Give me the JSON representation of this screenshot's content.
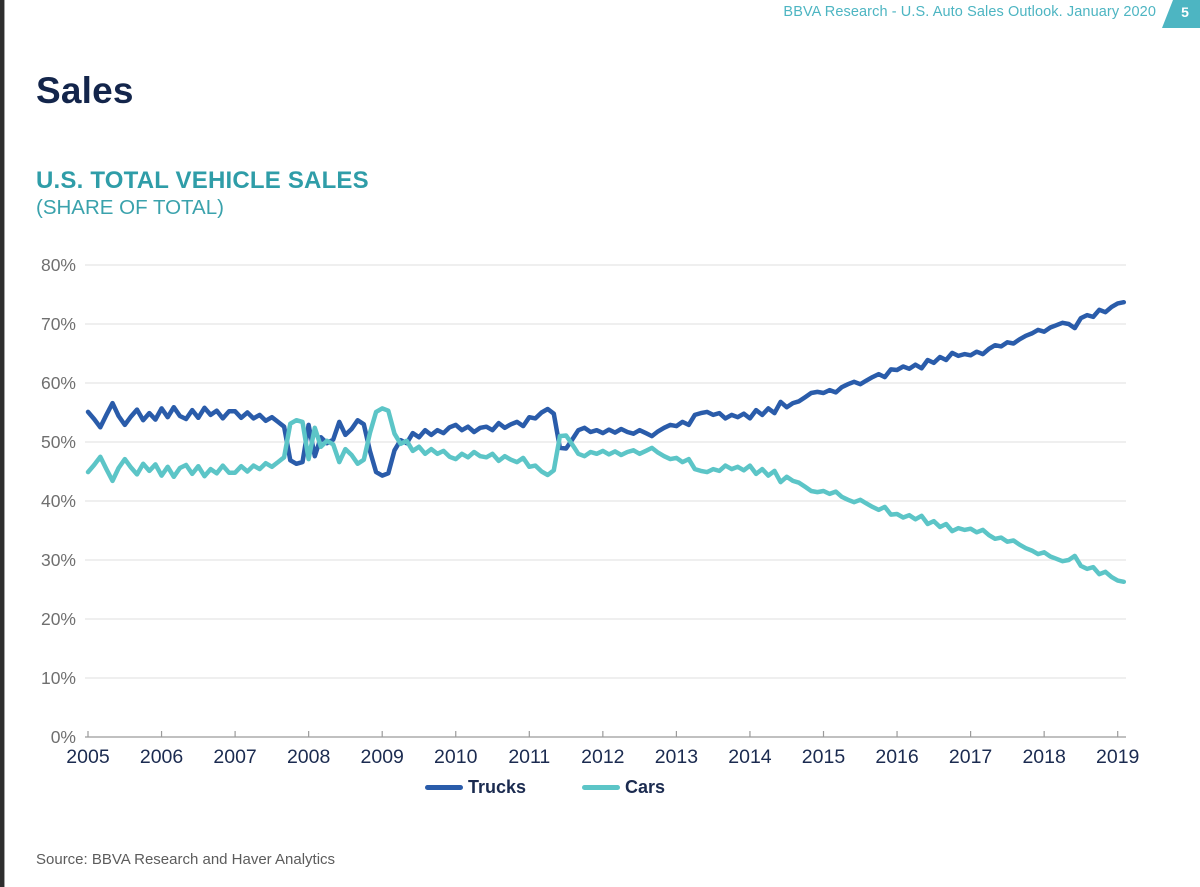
{
  "page": {
    "header": "BBVA Research - U.S. Auto Sales Outlook. January 2020",
    "page_number": "5",
    "title": "Sales",
    "source": "Source: BBVA Research and Haver Analytics"
  },
  "chart": {
    "title": "U.S. TOTAL VEHICLE SALES",
    "subtitle": "(SHARE OF TOTAL)"
  },
  "colors": {
    "trucks_line": "#2a5caa",
    "cars_line": "#5cc5c7",
    "accent_teal": "#4db5c2",
    "title_teal": "#2f9da8",
    "navy_text": "#13254b",
    "axis_gray": "#9b9b9b",
    "gridline_gray": "#dfdfdf"
  },
  "chart_data": {
    "type": "line",
    "title": "U.S. TOTAL VEHICLE SALES (SHARE OF TOTAL)",
    "x_unit": "monthly",
    "x_start": "2005-01",
    "x_end": "2019-02",
    "x_tick_labels": [
      "2005",
      "2006",
      "2007",
      "2008",
      "2009",
      "2010",
      "2011",
      "2012",
      "2013",
      "2014",
      "2015",
      "2016",
      "2017",
      "2018",
      "2019"
    ],
    "ylim": [
      0,
      80
    ],
    "ytick_step": 10,
    "ytick_suffix": "%",
    "grid": "horizontal",
    "legend_position": "bottom",
    "series": [
      {
        "name": "Trucks",
        "color": "#2a5caa",
        "values": [
          55.1,
          53.9,
          52.5,
          54.6,
          56.6,
          54.4,
          52.9,
          54.3,
          55.5,
          53.7,
          54.9,
          53.8,
          55.7,
          54.2,
          55.9,
          54.4,
          53.9,
          55.4,
          54.1,
          55.8,
          54.6,
          55.3,
          54.0,
          55.2,
          55.2,
          54.1,
          55.0,
          54.0,
          54.6,
          53.6,
          54.2,
          53.4,
          52.6,
          46.9,
          46.3,
          46.6,
          52.9,
          47.6,
          50.8,
          49.8,
          50.4,
          53.4,
          51.2,
          52.2,
          53.7,
          53.0,
          48.5,
          44.9,
          44.3,
          44.7,
          48.6,
          50.3,
          49.8,
          51.5,
          50.8,
          52.0,
          51.2,
          52.0,
          51.5,
          52.5,
          52.9,
          52.0,
          52.6,
          51.7,
          52.4,
          52.6,
          52.0,
          53.2,
          52.4,
          53.0,
          53.4,
          52.7,
          54.2,
          54.0,
          55.0,
          55.6,
          54.8,
          49.0,
          48.9,
          50.4,
          52.0,
          52.4,
          51.7,
          52.0,
          51.5,
          52.1,
          51.6,
          52.2,
          51.7,
          51.4,
          52.0,
          51.5,
          51.0,
          51.8,
          52.4,
          52.9,
          52.7,
          53.4,
          52.9,
          54.6,
          54.9,
          55.1,
          54.6,
          54.9,
          54.0,
          54.6,
          54.2,
          54.8,
          54.0,
          55.4,
          54.6,
          55.7,
          54.9,
          56.8,
          55.9,
          56.6,
          56.9,
          57.6,
          58.3,
          58.5,
          58.3,
          58.8,
          58.4,
          59.3,
          59.8,
          60.2,
          59.8,
          60.4,
          61.0,
          61.5,
          61.0,
          62.3,
          62.2,
          62.8,
          62.4,
          63.1,
          62.5,
          63.9,
          63.4,
          64.4,
          63.9,
          65.1,
          64.6,
          64.9,
          64.7,
          65.3,
          64.9,
          65.8,
          66.4,
          66.2,
          66.9,
          66.7,
          67.4,
          68.0,
          68.4,
          69.0,
          68.7,
          69.4,
          69.8,
          70.2,
          70.0,
          69.3,
          71.0,
          71.5,
          71.2,
          72.4,
          72.0,
          72.9,
          73.5,
          73.7
        ]
      },
      {
        "name": "Cars",
        "color": "#5cc5c7",
        "values": [
          44.9,
          46.1,
          47.5,
          45.4,
          43.4,
          45.6,
          47.1,
          45.7,
          44.5,
          46.3,
          45.1,
          46.2,
          44.3,
          45.8,
          44.1,
          45.6,
          46.1,
          44.6,
          45.9,
          44.2,
          45.4,
          44.7,
          46.0,
          44.8,
          44.8,
          45.9,
          45.0,
          46.0,
          45.4,
          46.4,
          45.8,
          46.6,
          47.4,
          53.1,
          53.7,
          53.4,
          47.1,
          52.4,
          49.2,
          50.2,
          49.6,
          46.6,
          48.8,
          47.8,
          46.3,
          47.0,
          51.5,
          55.1,
          55.7,
          55.3,
          51.4,
          49.7,
          50.2,
          48.5,
          49.2,
          48.0,
          48.8,
          48.0,
          48.5,
          47.5,
          47.1,
          48.0,
          47.4,
          48.3,
          47.6,
          47.4,
          48.0,
          46.8,
          47.6,
          47.0,
          46.6,
          47.3,
          45.8,
          46.0,
          45.0,
          44.4,
          45.2,
          51.0,
          51.1,
          49.6,
          48.0,
          47.6,
          48.3,
          48.0,
          48.5,
          47.9,
          48.4,
          47.8,
          48.3,
          48.6,
          48.0,
          48.5,
          49.0,
          48.2,
          47.6,
          47.1,
          47.3,
          46.6,
          47.1,
          45.4,
          45.1,
          44.9,
          45.4,
          45.1,
          46.0,
          45.4,
          45.8,
          45.2,
          46.0,
          44.6,
          45.4,
          44.3,
          45.1,
          43.2,
          44.1,
          43.4,
          43.1,
          42.4,
          41.7,
          41.5,
          41.7,
          41.2,
          41.6,
          40.7,
          40.2,
          39.8,
          40.2,
          39.6,
          39.0,
          38.5,
          39.0,
          37.7,
          37.8,
          37.2,
          37.6,
          36.9,
          37.5,
          36.1,
          36.6,
          35.6,
          36.1,
          34.9,
          35.4,
          35.1,
          35.3,
          34.7,
          35.1,
          34.2,
          33.6,
          33.8,
          33.1,
          33.3,
          32.6,
          32.0,
          31.6,
          31.0,
          31.3,
          30.6,
          30.2,
          29.8,
          30.0,
          30.7,
          29.0,
          28.5,
          28.8,
          27.6,
          28.0,
          27.1,
          26.5,
          26.3
        ]
      }
    ]
  }
}
